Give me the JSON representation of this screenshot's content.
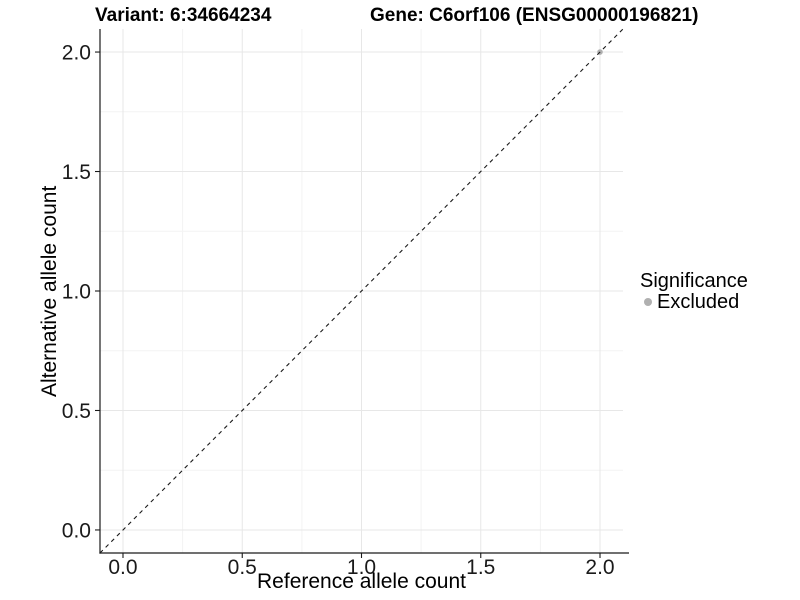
{
  "header": {
    "variant_title": "Variant: 6:34664234",
    "gene_title": "Gene: C6orf106 (ENSG00000196821)"
  },
  "chart_data": {
    "type": "scatter",
    "xlabel": "Reference allele count",
    "ylabel": "Alternative allele count",
    "xlim": [
      -0.0964,
      2.0964
    ],
    "ylim": [
      -0.0964,
      2.0964
    ],
    "x_ticks": [
      0.0,
      0.5,
      1.0,
      1.5,
      2.0
    ],
    "y_ticks": [
      0.0,
      0.5,
      1.0,
      1.5,
      2.0
    ],
    "x_minor_ticks": [
      0.25,
      0.75,
      1.25,
      1.75
    ],
    "y_minor_ticks": [
      0.25,
      0.75,
      1.25,
      1.75
    ],
    "grid": true,
    "reference_line": {
      "type": "identity",
      "equation": "y = x",
      "style": "dashed"
    },
    "series": [
      {
        "name": "Excluded",
        "points": [
          {
            "x": 2.0,
            "y": 2.0
          }
        ]
      }
    ],
    "point_color": "#b0b0b0",
    "legend_position": "right"
  },
  "legend": {
    "title": "Significance",
    "entries": [
      {
        "label": "Excluded",
        "color": "#b0b0b0",
        "marker": "circle"
      }
    ]
  },
  "colors": {
    "grid_major": "#e7e7e7",
    "grid_minor": "#f3f3f3",
    "axis": "#1a1a1a",
    "dashed_line": "#1a1a1a",
    "tick_label": "#1a1a1a",
    "background": "#ffffff"
  }
}
